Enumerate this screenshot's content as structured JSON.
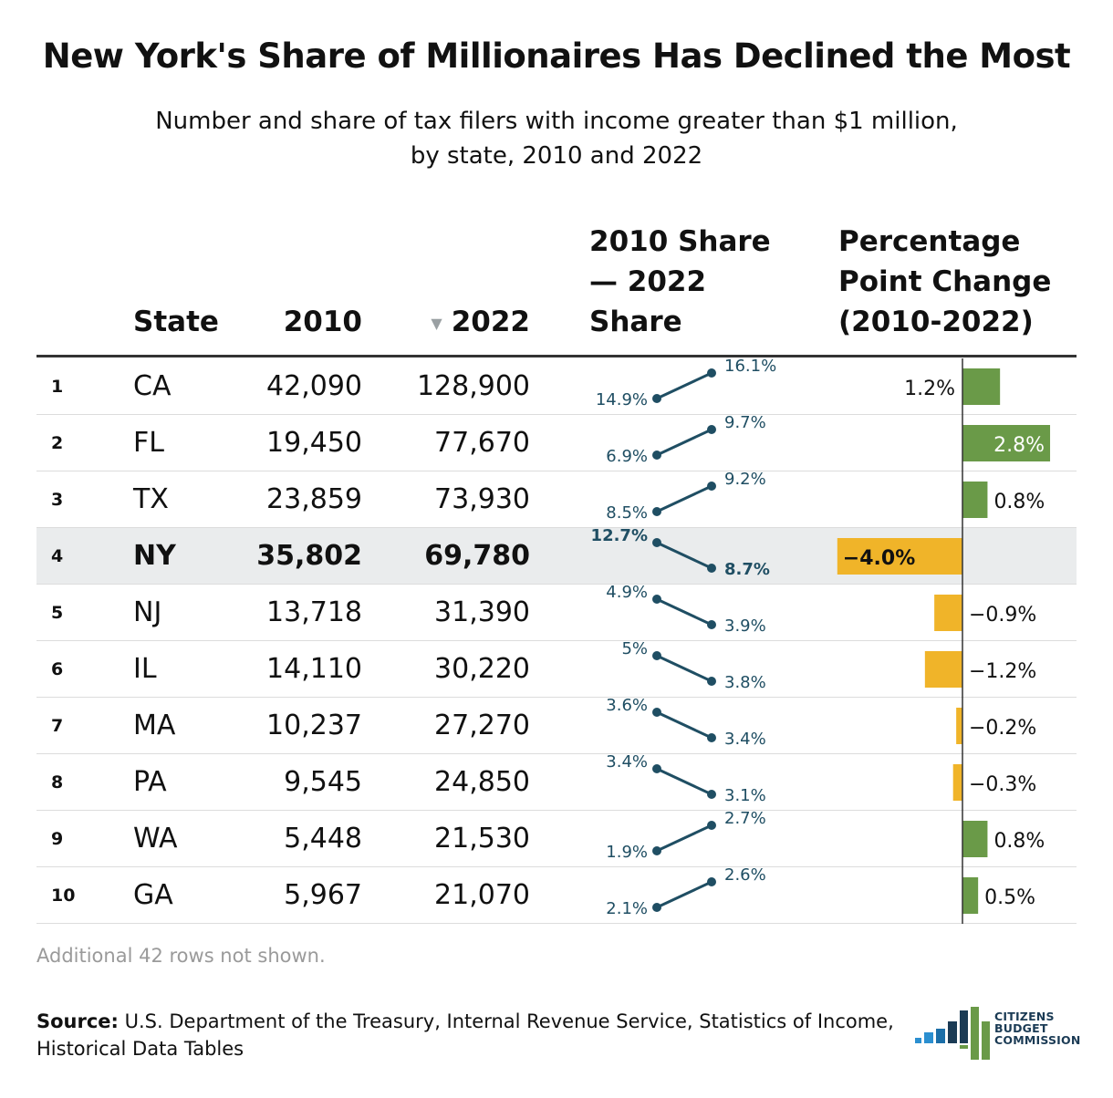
{
  "title": "New York's Share of Millionaires Has Declined the Most",
  "subtitle": "Number and share of tax filers with income greater than $1 million, by state, 2010 and 2022",
  "columns": {
    "state": "State",
    "y2010": "2010",
    "y2022": "2022",
    "sort_icon": "▼",
    "slope_l1": "2010 Share",
    "slope_l2": "— 2022",
    "slope_l3": "Share",
    "change_l1": "Percentage",
    "change_l2": "Point Change",
    "change_l3": "(2010-2022)"
  },
  "colors": {
    "positive": "#6a9a48",
    "negative": "#f0b429",
    "slope": "#1f4e63",
    "highlight_row": "#eaeced"
  },
  "footnote": "Additional 42 rows not shown.",
  "source_label": "Source:",
  "source_text": "U.S. Department of the Treasury, Internal Revenue Service, Statistics of Income, Historical Data Tables",
  "logo": {
    "line1": "CITIZENS",
    "line2": "BUDGET",
    "line3": "COMMISSION"
  },
  "chart_data": {
    "type": "table",
    "highlight": "NY",
    "rows": [
      {
        "rank": "1",
        "state": "CA",
        "filers_2010": "42,090",
        "filers_2022": "128,900",
        "share_2010": 14.9,
        "share_2022": 16.1,
        "share_2010_label": "14.9%",
        "share_2022_label": "16.1%",
        "change": 1.2,
        "change_label": "1.2%"
      },
      {
        "rank": "2",
        "state": "FL",
        "filers_2010": "19,450",
        "filers_2022": "77,670",
        "share_2010": 6.9,
        "share_2022": 9.7,
        "share_2010_label": "6.9%",
        "share_2022_label": "9.7%",
        "change": 2.8,
        "change_label": "2.8%"
      },
      {
        "rank": "3",
        "state": "TX",
        "filers_2010": "23,859",
        "filers_2022": "73,930",
        "share_2010": 8.5,
        "share_2022": 9.2,
        "share_2010_label": "8.5%",
        "share_2022_label": "9.2%",
        "change": 0.8,
        "change_label": "0.8%"
      },
      {
        "rank": "4",
        "state": "NY",
        "filers_2010": "35,802",
        "filers_2022": "69,780",
        "share_2010": 12.7,
        "share_2022": 8.7,
        "share_2010_label": "12.7%",
        "share_2022_label": "8.7%",
        "change": -4.0,
        "change_label": "−4.0%"
      },
      {
        "rank": "5",
        "state": "NJ",
        "filers_2010": "13,718",
        "filers_2022": "31,390",
        "share_2010": 4.9,
        "share_2022": 3.9,
        "share_2010_label": "4.9%",
        "share_2022_label": "3.9%",
        "change": -0.9,
        "change_label": "−0.9%"
      },
      {
        "rank": "6",
        "state": "IL",
        "filers_2010": "14,110",
        "filers_2022": "30,220",
        "share_2010": 5.0,
        "share_2022": 3.8,
        "share_2010_label": "5%",
        "share_2022_label": "3.8%",
        "change": -1.2,
        "change_label": "−1.2%"
      },
      {
        "rank": "7",
        "state": "MA",
        "filers_2010": "10,237",
        "filers_2022": "27,270",
        "share_2010": 3.6,
        "share_2022": 3.4,
        "share_2010_label": "3.6%",
        "share_2022_label": "3.4%",
        "change": -0.2,
        "change_label": "−0.2%"
      },
      {
        "rank": "8",
        "state": "PA",
        "filers_2010": "9,545",
        "filers_2022": "24,850",
        "share_2010": 3.4,
        "share_2022": 3.1,
        "share_2010_label": "3.4%",
        "share_2022_label": "3.1%",
        "change": -0.3,
        "change_label": "−0.3%"
      },
      {
        "rank": "9",
        "state": "WA",
        "filers_2010": "5,448",
        "filers_2022": "21,530",
        "share_2010": 1.9,
        "share_2022": 2.7,
        "share_2010_label": "1.9%",
        "share_2022_label": "2.7%",
        "change": 0.8,
        "change_label": "0.8%"
      },
      {
        "rank": "10",
        "state": "GA",
        "filers_2010": "5,967",
        "filers_2022": "21,070",
        "share_2010": 2.1,
        "share_2022": 2.6,
        "share_2010_label": "2.1%",
        "share_2022_label": "2.6%",
        "change": 0.5,
        "change_label": "0.5%"
      }
    ]
  }
}
